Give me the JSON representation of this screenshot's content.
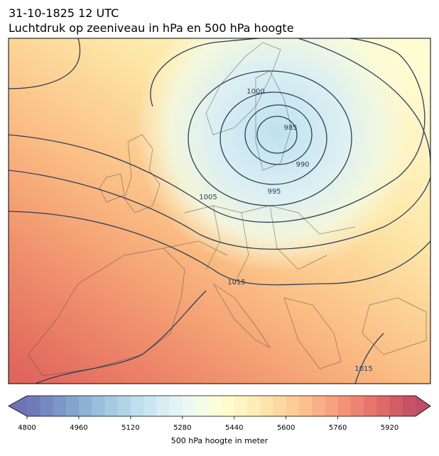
{
  "header": {
    "date": "31-10-1825 12 UTC",
    "title": "Luchtdruk op zeeniveau in hPa en 500 hPa hoogte"
  },
  "isobar_labels": [
    1000,
    985,
    990,
    995,
    1005,
    1015,
    1015
  ],
  "colorbar": {
    "label": "500 hPa hoogte in meter",
    "range": [
      4800,
      6000
    ],
    "step": 40,
    "ticks": [
      4800,
      4960,
      5120,
      5280,
      5440,
      5600,
      5760,
      5920
    ],
    "colors": [
      "#313695",
      "#4575b4",
      "#74add1",
      "#abd9e9",
      "#e0f3f8",
      "#ffffbf",
      "#fee090",
      "#fdae61",
      "#f46d43",
      "#d73027",
      "#a50026"
    ]
  }
}
